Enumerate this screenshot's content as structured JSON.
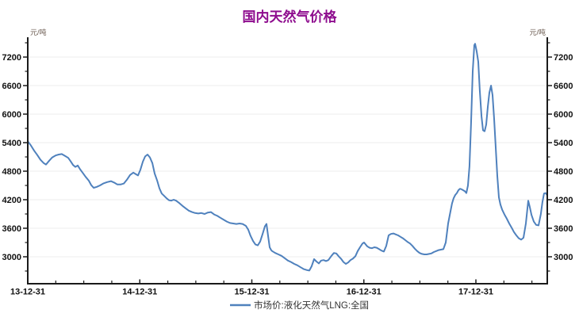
{
  "chart_data": {
    "type": "line",
    "title": "国内天然气价格",
    "y_unit": "元/吨",
    "legend_position": "bottom-center",
    "grid": "horizontal-major-only",
    "x_tick_labels": [
      "13-12-31",
      "14-12-31",
      "15-12-31",
      "16-12-31",
      "17-12-31"
    ],
    "x_minor_ticks_per_year": 4,
    "x_range_years_after_2013_12_31": [
      0,
      4.637
    ],
    "y_major_ticks": [
      3000,
      3600,
      4200,
      4800,
      5400,
      6000,
      6600,
      7200
    ],
    "y_minor_step": 300,
    "y_axis_range": [
      2430,
      7620
    ],
    "colors": {
      "title": "#8E0D8E",
      "line": "#4F81BD",
      "axis": "#1A1A1A",
      "grid": "#ECECEC",
      "tick_label": "#111111",
      "unit_label": "#6B5B50",
      "legend_text": "#333333",
      "background": "#FFFFFF"
    },
    "series": [
      {
        "name": "市场价:液化天然气LNG:全国",
        "color": "#4F81BD",
        "x_is": "years after 2013-12-31",
        "points": [
          [
            0.0,
            5430
          ],
          [
            0.028,
            5340
          ],
          [
            0.057,
            5230
          ],
          [
            0.085,
            5140
          ],
          [
            0.113,
            5040
          ],
          [
            0.142,
            4970
          ],
          [
            0.163,
            4940
          ],
          [
            0.191,
            5020
          ],
          [
            0.219,
            5090
          ],
          [
            0.248,
            5130
          ],
          [
            0.276,
            5150
          ],
          [
            0.304,
            5160
          ],
          [
            0.333,
            5120
          ],
          [
            0.361,
            5080
          ],
          [
            0.382,
            5010
          ],
          [
            0.404,
            4930
          ],
          [
            0.425,
            4890
          ],
          [
            0.446,
            4920
          ],
          [
            0.467,
            4840
          ],
          [
            0.489,
            4770
          ],
          [
            0.517,
            4680
          ],
          [
            0.545,
            4600
          ],
          [
            0.566,
            4510
          ],
          [
            0.588,
            4450
          ],
          [
            0.616,
            4470
          ],
          [
            0.644,
            4500
          ],
          [
            0.673,
            4540
          ],
          [
            0.708,
            4570
          ],
          [
            0.743,
            4590
          ],
          [
            0.772,
            4560
          ],
          [
            0.8,
            4520
          ],
          [
            0.828,
            4520
          ],
          [
            0.857,
            4540
          ],
          [
            0.885,
            4620
          ],
          [
            0.913,
            4720
          ],
          [
            0.942,
            4770
          ],
          [
            0.963,
            4740
          ],
          [
            0.984,
            4710
          ],
          [
            1.005,
            4830
          ],
          [
            1.027,
            5000
          ],
          [
            1.048,
            5110
          ],
          [
            1.069,
            5150
          ],
          [
            1.09,
            5090
          ],
          [
            1.112,
            4970
          ],
          [
            1.133,
            4750
          ],
          [
            1.154,
            4610
          ],
          [
            1.175,
            4440
          ],
          [
            1.196,
            4330
          ],
          [
            1.218,
            4280
          ],
          [
            1.239,
            4230
          ],
          [
            1.26,
            4190
          ],
          [
            1.281,
            4180
          ],
          [
            1.303,
            4200
          ],
          [
            1.324,
            4180
          ],
          [
            1.352,
            4130
          ],
          [
            1.381,
            4070
          ],
          [
            1.409,
            4020
          ],
          [
            1.437,
            3970
          ],
          [
            1.466,
            3940
          ],
          [
            1.494,
            3920
          ],
          [
            1.522,
            3910
          ],
          [
            1.55,
            3920
          ],
          [
            1.579,
            3900
          ],
          [
            1.607,
            3930
          ],
          [
            1.635,
            3940
          ],
          [
            1.664,
            3890
          ],
          [
            1.692,
            3860
          ],
          [
            1.72,
            3820
          ],
          [
            1.749,
            3780
          ],
          [
            1.777,
            3740
          ],
          [
            1.805,
            3710
          ],
          [
            1.834,
            3700
          ],
          [
            1.862,
            3690
          ],
          [
            1.89,
            3700
          ],
          [
            1.918,
            3690
          ],
          [
            1.947,
            3650
          ],
          [
            1.968,
            3570
          ],
          [
            1.989,
            3440
          ],
          [
            2.011,
            3330
          ],
          [
            2.032,
            3260
          ],
          [
            2.053,
            3240
          ],
          [
            2.074,
            3320
          ],
          [
            2.096,
            3480
          ],
          [
            2.117,
            3640
          ],
          [
            2.131,
            3690
          ],
          [
            2.145,
            3440
          ],
          [
            2.159,
            3200
          ],
          [
            2.173,
            3140
          ],
          [
            2.181,
            3120
          ],
          [
            2.209,
            3080
          ],
          [
            2.237,
            3050
          ],
          [
            2.265,
            3020
          ],
          [
            2.294,
            2970
          ],
          [
            2.322,
            2920
          ],
          [
            2.35,
            2890
          ],
          [
            2.379,
            2850
          ],
          [
            2.407,
            2820
          ],
          [
            2.435,
            2780
          ],
          [
            2.464,
            2740
          ],
          [
            2.492,
            2720
          ],
          [
            2.513,
            2710
          ],
          [
            2.534,
            2800
          ],
          [
            2.556,
            2950
          ],
          [
            2.577,
            2900
          ],
          [
            2.598,
            2860
          ],
          [
            2.619,
            2920
          ],
          [
            2.641,
            2930
          ],
          [
            2.662,
            2910
          ],
          [
            2.683,
            2930
          ],
          [
            2.711,
            3020
          ],
          [
            2.733,
            3080
          ],
          [
            2.754,
            3070
          ],
          [
            2.775,
            3010
          ],
          [
            2.796,
            2960
          ],
          [
            2.818,
            2890
          ],
          [
            2.839,
            2850
          ],
          [
            2.86,
            2880
          ],
          [
            2.881,
            2930
          ],
          [
            2.902,
            2960
          ],
          [
            2.924,
            3010
          ],
          [
            2.945,
            3120
          ],
          [
            2.966,
            3200
          ],
          [
            2.988,
            3280
          ],
          [
            3.002,
            3300
          ],
          [
            3.016,
            3260
          ],
          [
            3.03,
            3220
          ],
          [
            3.051,
            3190
          ],
          [
            3.072,
            3180
          ],
          [
            3.094,
            3200
          ],
          [
            3.115,
            3190
          ],
          [
            3.136,
            3160
          ],
          [
            3.157,
            3130
          ],
          [
            3.179,
            3110
          ],
          [
            3.2,
            3230
          ],
          [
            3.221,
            3450
          ],
          [
            3.242,
            3480
          ],
          [
            3.264,
            3490
          ],
          [
            3.285,
            3470
          ],
          [
            3.306,
            3450
          ],
          [
            3.327,
            3420
          ],
          [
            3.348,
            3390
          ],
          [
            3.37,
            3350
          ],
          [
            3.391,
            3310
          ],
          [
            3.412,
            3280
          ],
          [
            3.433,
            3230
          ],
          [
            3.455,
            3170
          ],
          [
            3.476,
            3120
          ],
          [
            3.497,
            3080
          ],
          [
            3.518,
            3060
          ],
          [
            3.54,
            3050
          ],
          [
            3.561,
            3050
          ],
          [
            3.582,
            3060
          ],
          [
            3.603,
            3070
          ],
          [
            3.625,
            3100
          ],
          [
            3.646,
            3120
          ],
          [
            3.667,
            3140
          ],
          [
            3.688,
            3150
          ],
          [
            3.71,
            3160
          ],
          [
            3.731,
            3300
          ],
          [
            3.752,
            3700
          ],
          [
            3.773,
            3950
          ],
          [
            3.787,
            4120
          ],
          [
            3.801,
            4230
          ],
          [
            3.816,
            4300
          ],
          [
            3.83,
            4340
          ],
          [
            3.844,
            4400
          ],
          [
            3.858,
            4430
          ],
          [
            3.872,
            4420
          ],
          [
            3.886,
            4400
          ],
          [
            3.901,
            4380
          ],
          [
            3.915,
            4340
          ],
          [
            3.929,
            4500
          ],
          [
            3.943,
            4900
          ],
          [
            3.957,
            5800
          ],
          [
            3.972,
            6900
          ],
          [
            3.986,
            7450
          ],
          [
            3.993,
            7480
          ],
          [
            4.007,
            7320
          ],
          [
            4.021,
            7100
          ],
          [
            4.035,
            6500
          ],
          [
            4.05,
            5950
          ],
          [
            4.064,
            5660
          ],
          [
            4.078,
            5640
          ],
          [
            4.092,
            5780
          ],
          [
            4.106,
            6150
          ],
          [
            4.12,
            6450
          ],
          [
            4.135,
            6600
          ],
          [
            4.149,
            6400
          ],
          [
            4.163,
            5900
          ],
          [
            4.177,
            5300
          ],
          [
            4.191,
            4700
          ],
          [
            4.205,
            4250
          ],
          [
            4.219,
            4100
          ],
          [
            4.234,
            3990
          ],
          [
            4.255,
            3890
          ],
          [
            4.276,
            3800
          ],
          [
            4.297,
            3700
          ],
          [
            4.319,
            3610
          ],
          [
            4.34,
            3520
          ],
          [
            4.361,
            3450
          ],
          [
            4.382,
            3390
          ],
          [
            4.404,
            3360
          ],
          [
            4.425,
            3400
          ],
          [
            4.446,
            3700
          ],
          [
            4.467,
            4180
          ],
          [
            4.481,
            4050
          ],
          [
            4.496,
            3880
          ],
          [
            4.517,
            3740
          ],
          [
            4.538,
            3670
          ],
          [
            4.559,
            3660
          ],
          [
            4.58,
            3900
          ],
          [
            4.594,
            4150
          ],
          [
            4.608,
            4330
          ],
          [
            4.623,
            4340
          ],
          [
            4.637,
            4290
          ]
        ]
      }
    ]
  }
}
